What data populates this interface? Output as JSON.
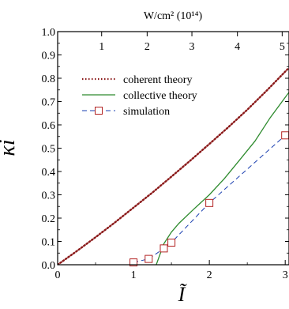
{
  "chart_data": {
    "type": "line",
    "xlabel": "Ĩ",
    "ylabel": "κi",
    "top_axis_label": "W/cm² (10¹⁴)",
    "xlim": [
      0,
      3.05
    ],
    "ylim": [
      0,
      1.0
    ],
    "x_ticks": [
      "0",
      "1",
      "2",
      "3"
    ],
    "x_tick_values": [
      0,
      1,
      2,
      3
    ],
    "y_ticks": [
      "0.0",
      "0.1",
      "0.2",
      "0.3",
      "0.4",
      "0.5",
      "0.6",
      "0.7",
      "0.8",
      "0.9",
      "1.0"
    ],
    "y_tick_values": [
      0.0,
      0.1,
      0.2,
      0.3,
      0.4,
      0.5,
      0.6,
      0.7,
      0.8,
      0.9,
      1.0
    ],
    "top_ticks": [
      "1",
      "2",
      "3",
      "4",
      "5"
    ],
    "top_tick_positions": [
      0.58,
      1.18,
      1.77,
      2.37,
      2.96
    ],
    "legend_position": "upper-left",
    "series": [
      {
        "name": "coherent theory",
        "style": "dotted",
        "color": "#8b1a1a",
        "x": [
          0,
          0.25,
          0.5,
          0.75,
          1.0,
          1.25,
          1.5,
          1.75,
          2.0,
          2.25,
          2.5,
          2.75,
          3.05
        ],
        "y": [
          0.0,
          0.058,
          0.118,
          0.18,
          0.245,
          0.31,
          0.378,
          0.447,
          0.518,
          0.59,
          0.665,
          0.745,
          0.845
        ]
      },
      {
        "name": "collective theory",
        "style": "solid",
        "color": "#2e8b2e",
        "x": [
          1.3,
          1.4,
          1.5,
          1.6,
          1.8,
          2.0,
          2.2,
          2.4,
          2.6,
          2.8,
          3.05
        ],
        "y": [
          0.0,
          0.09,
          0.14,
          0.178,
          0.24,
          0.3,
          0.37,
          0.45,
          0.53,
          0.63,
          0.74
        ]
      },
      {
        "name": "simulation",
        "style": "dashed",
        "color": "#1a3fb0",
        "marker": "square",
        "marker_color": "#b22222",
        "x": [
          1.0,
          1.2,
          1.4,
          1.5,
          2.0,
          3.0
        ],
        "y": [
          0.01,
          0.025,
          0.07,
          0.095,
          0.265,
          0.555
        ]
      }
    ]
  }
}
